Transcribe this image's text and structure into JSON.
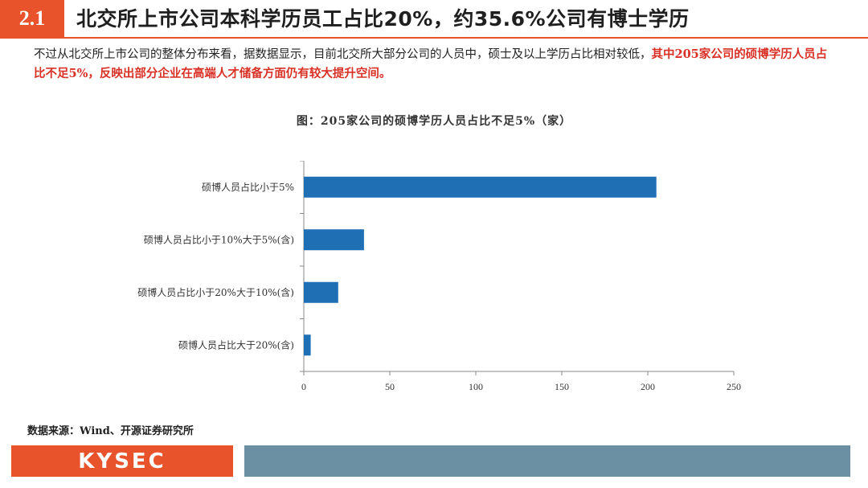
{
  "header": {
    "section_number": "2.1",
    "title": "北交所上市公司本科学历员工占比20%，约35.6%公司有博士学历"
  },
  "summary": {
    "text": "不过从北交所上市公司的整体分布来看，据数据显示，目前北交所大部分公司的人员中，硕士及以上学历占比相对较低，",
    "highlight": "其中205家公司的硕博学历人员占比不足5%，反映出部分企业在高端人才储备方面仍有较大提升空间。"
  },
  "chart_data": {
    "type": "bar",
    "orientation": "horizontal",
    "title": "图：205家公司的硕博学历人员占比不足5%（家）",
    "categories": [
      "硕博人员占比小于5%",
      "硕博人员占比小于10%大于5%(含)",
      "硕博人员占比小于20%大于10%(含)",
      "硕博人员占比大于20%(含)"
    ],
    "values": [
      205,
      35,
      20,
      4
    ],
    "xlim": [
      0,
      250
    ],
    "xticks": [
      0,
      50,
      100,
      150,
      200,
      250
    ],
    "bar_color": "#1f6fb5",
    "grid": false,
    "legend": "none"
  },
  "source": "数据来源：Wind、开源证券研究所",
  "footer": {
    "logo_text": "KYSEC",
    "brand_color": "#e8532b",
    "bar_color": "#6b8fa3"
  }
}
